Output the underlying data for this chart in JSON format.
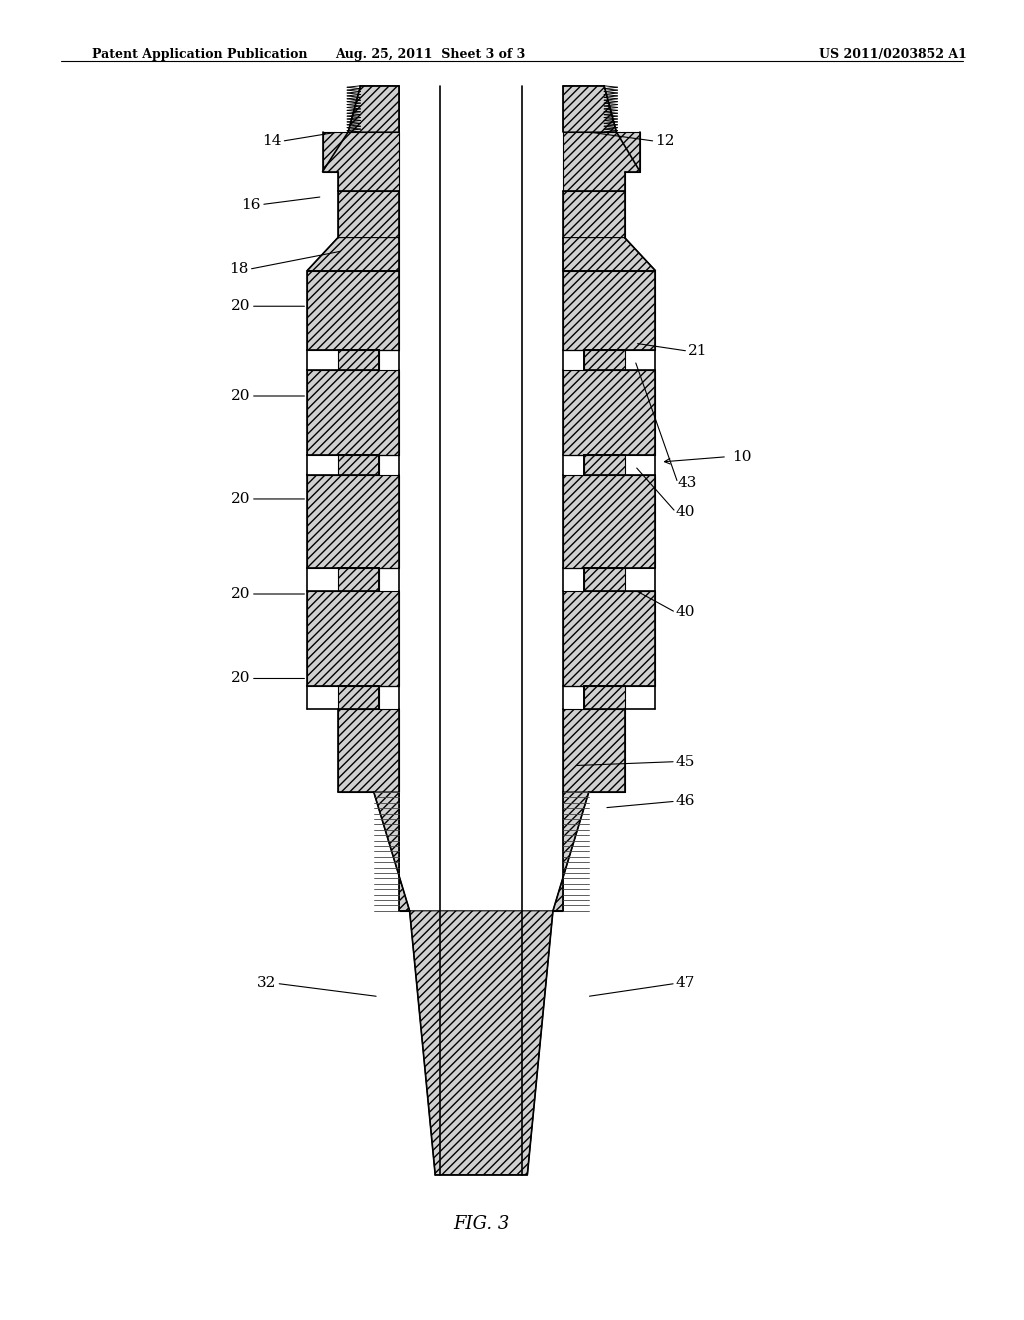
{
  "title_left": "Patent Application Publication",
  "title_mid": "Aug. 25, 2011  Sheet 3 of 3",
  "title_right": "US 2011/0203852 A1",
  "fig_label": "FIG. 3",
  "bg_color": "#ffffff",
  "gray": "#d0d0d0",
  "hatch": "////",
  "lw_main": 1.2,
  "fs_label": 11
}
